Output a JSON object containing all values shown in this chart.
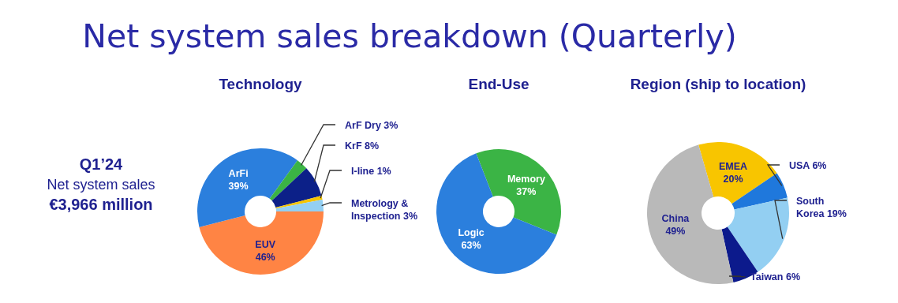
{
  "chart_data": [
    {
      "type": "other",
      "title": "Net system sales breakdown (Quarterly)",
      "annotations": [
        "Q1’24",
        "Net system sales",
        "€3,966 million"
      ]
    },
    {
      "type": "donut",
      "title": "Technology",
      "categories": [
        "EUV",
        "ArFi",
        "ArF Dry",
        "KrF",
        "I-line",
        "Metrology & Inspection"
      ],
      "values": [
        46,
        39,
        3,
        8,
        1,
        3
      ],
      "value_labels": [
        "46%",
        "39%",
        "3%",
        "8%",
        "1%",
        "3%"
      ],
      "colors": [
        "#ff8444",
        "#2b7fdd",
        "#3bb445",
        "#0c2088",
        "#f5c400",
        "#93cff2"
      ]
    },
    {
      "type": "donut",
      "title": "End-Use",
      "categories": [
        "Memory",
        "Logic"
      ],
      "values": [
        37,
        63
      ],
      "value_labels": [
        "37%",
        "63%"
      ],
      "colors": [
        "#3bb445",
        "#2b7fdd"
      ]
    },
    {
      "type": "donut",
      "title": "Region (ship to location)",
      "categories": [
        "EMEA",
        "USA",
        "South Korea",
        "Taiwan",
        "China"
      ],
      "values": [
        20,
        6,
        19,
        6,
        49
      ],
      "value_labels": [
        "20%",
        "6%",
        "19%",
        "6%",
        "49%"
      ],
      "colors": [
        "#f8c500",
        "#1f78dc",
        "#93cff2",
        "#0c1a8c",
        "#b9b9b9"
      ]
    }
  ]
}
